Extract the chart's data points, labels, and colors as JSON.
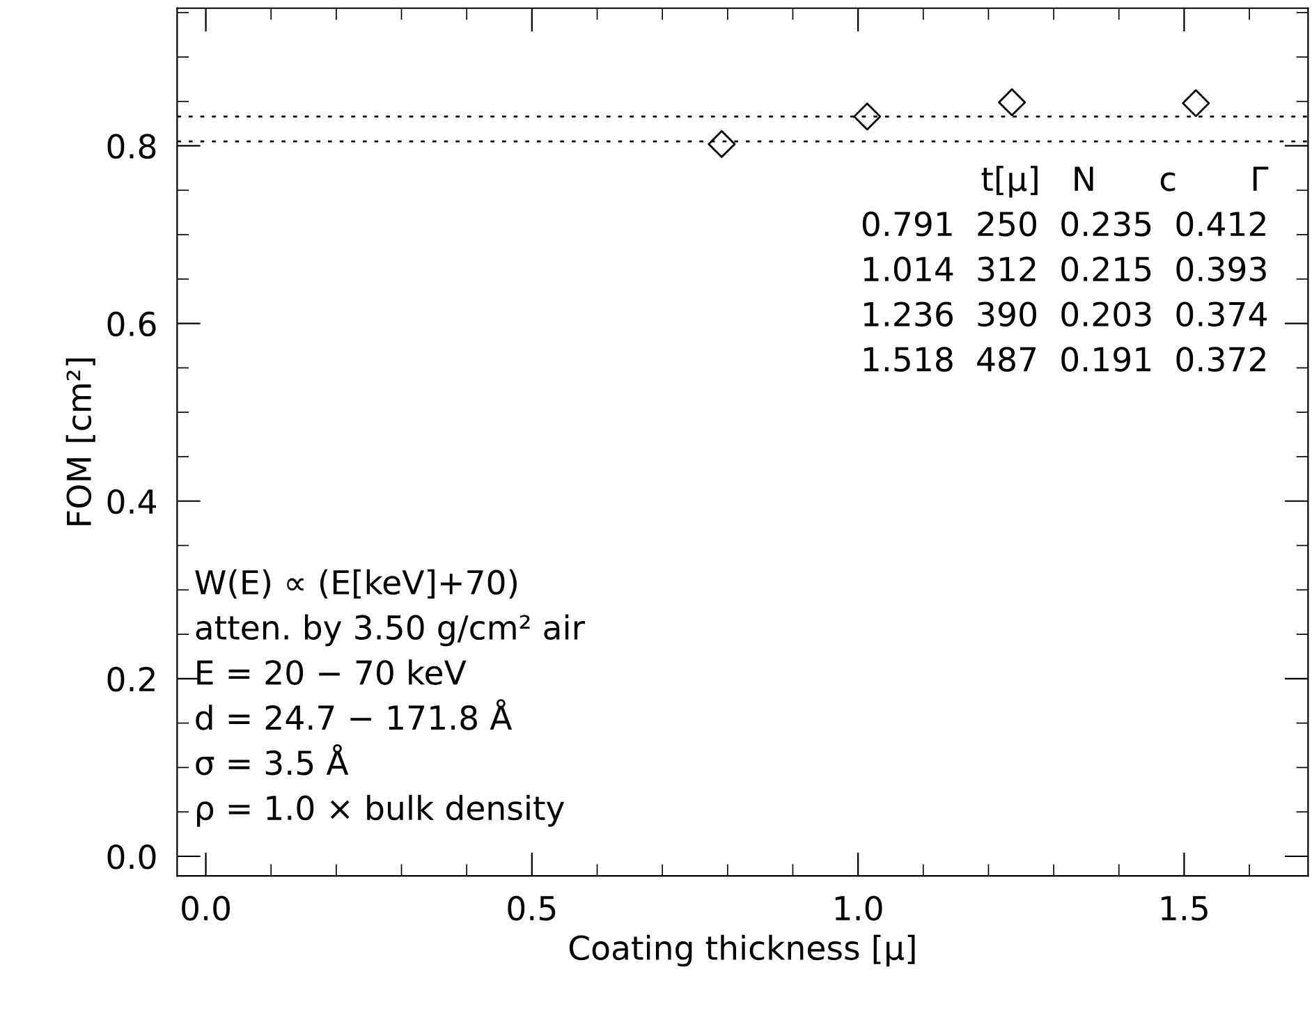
{
  "chart_data": {
    "type": "scatter",
    "xlabel": "Coating thickness [μ]",
    "ylabel": "FOM [cm²]",
    "x": [
      0.791,
      1.014,
      1.236,
      1.518
    ],
    "series": [
      {
        "color": "#000000",
        "values": [
          0.802,
          0.833,
          0.849,
          0.848
        ]
      }
    ],
    "marker": "diamond",
    "xlim": [
      -0.044,
      1.69
    ],
    "ylim": [
      -0.022,
      0.955
    ],
    "xticks": [
      {
        "value": 0.0,
        "label": "0.0"
      },
      0.5,
      {
        "value": 1.0,
        "label": "1.0"
      },
      1.5
    ],
    "yticks": [
      {
        "value": 0.0,
        "label": "0.0"
      },
      0.2,
      0.4,
      0.6,
      0.8
    ],
    "ref_lines": [
      {
        "axis": "y",
        "value": 0.833,
        "color": "#000000",
        "line_style": "dotted"
      },
      {
        "axis": "y",
        "value": 0.805,
        "color": "#000000",
        "line_style": "dotted"
      }
    ],
    "grid": false,
    "legend": false,
    "annotations": [
      "t[μ]   N      c       Γ",
      "0.791  250  0.235  0.412",
      "1.014  312  0.215  0.393",
      "1.236  390  0.203  0.374",
      "1.518  487  0.191  0.372",
      "W(E) ∝ (E[keV]+70)",
      "atten. by 3.50 g/cm² air",
      "E = 20 − 70 keV",
      "d = 24.7 − 171.8 Å",
      "σ = 3.5 Å",
      "ρ = 1.0 × bulk density"
    ]
  }
}
